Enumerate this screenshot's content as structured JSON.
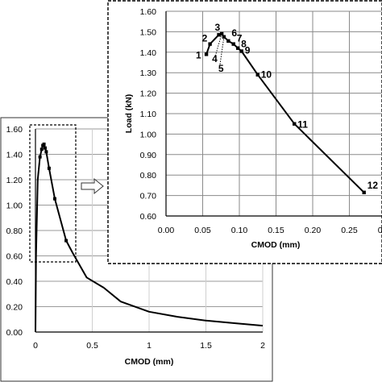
{
  "chart_data": [
    {
      "type": "line",
      "xlabel": "CMOD (mm)",
      "ylabel": "",
      "xlim": [
        0,
        2
      ],
      "ylim": [
        0,
        1.6
      ],
      "x_ticks": [
        "0",
        "0.5",
        "1",
        "1.5",
        "2"
      ],
      "y_ticks": [
        "0.00",
        "0.20",
        "0.40",
        "0.60",
        "0.80",
        "1.00",
        "1.20",
        "1.40",
        "1.60"
      ],
      "grid": "horizontal",
      "series": [
        {
          "x": [
            0.0,
            0.005,
            0.02,
            0.04,
            0.055,
            0.065,
            0.075,
            0.085,
            0.095,
            0.12,
            0.17,
            0.27,
            0.33,
            0.45,
            0.6,
            0.75,
            1.0,
            1.25,
            1.5,
            1.75,
            2.0
          ],
          "y": [
            0.0,
            0.6,
            1.2,
            1.38,
            1.44,
            1.47,
            1.48,
            1.45,
            1.42,
            1.29,
            1.05,
            0.72,
            0.62,
            0.43,
            0.35,
            0.24,
            0.16,
            0.12,
            0.09,
            0.07,
            0.05
          ]
        }
      ]
    },
    {
      "type": "line",
      "xlabel": "CMOD (mm)",
      "ylabel": "Load (kN)",
      "xlim": [
        0,
        0.3
      ],
      "ylim": [
        0.6,
        1.6
      ],
      "x_ticks": [
        "0.00",
        "0.05",
        "0.10",
        "0.15",
        "0.20",
        "0.25",
        "0.30"
      ],
      "y_ticks": [
        "0.60",
        "0.70",
        "0.80",
        "0.90",
        "1.00",
        "1.10",
        "1.20",
        "1.30",
        "1.40",
        "1.50",
        "1.60"
      ],
      "grid": "both",
      "series": [
        {
          "x": [
            0.055,
            0.06,
            0.072,
            0.076,
            0.079,
            0.085,
            0.092,
            0.098,
            0.103,
            0.125,
            0.175,
            0.27
          ],
          "y": [
            1.39,
            1.44,
            1.485,
            1.49,
            1.475,
            1.455,
            1.44,
            1.42,
            1.405,
            1.29,
            1.05,
            0.715
          ]
        }
      ],
      "annotations": [
        {
          "label": "1",
          "x": 0.055,
          "y": 1.39
        },
        {
          "label": "2",
          "x": 0.06,
          "y": 1.44
        },
        {
          "label": "3",
          "x": 0.072,
          "y": 1.485
        },
        {
          "label": "4",
          "x": 0.076,
          "y": 1.49
        },
        {
          "label": "5",
          "x": 0.079,
          "y": 1.475
        },
        {
          "label": "6",
          "x": 0.085,
          "y": 1.455
        },
        {
          "label": "7",
          "x": 0.092,
          "y": 1.44
        },
        {
          "label": "8",
          "x": 0.098,
          "y": 1.42
        },
        {
          "label": "9",
          "x": 0.103,
          "y": 1.405
        },
        {
          "label": "10",
          "x": 0.125,
          "y": 1.29
        },
        {
          "label": "11",
          "x": 0.175,
          "y": 1.05
        },
        {
          "label": "12",
          "x": 0.27,
          "y": 0.715
        }
      ]
    }
  ]
}
